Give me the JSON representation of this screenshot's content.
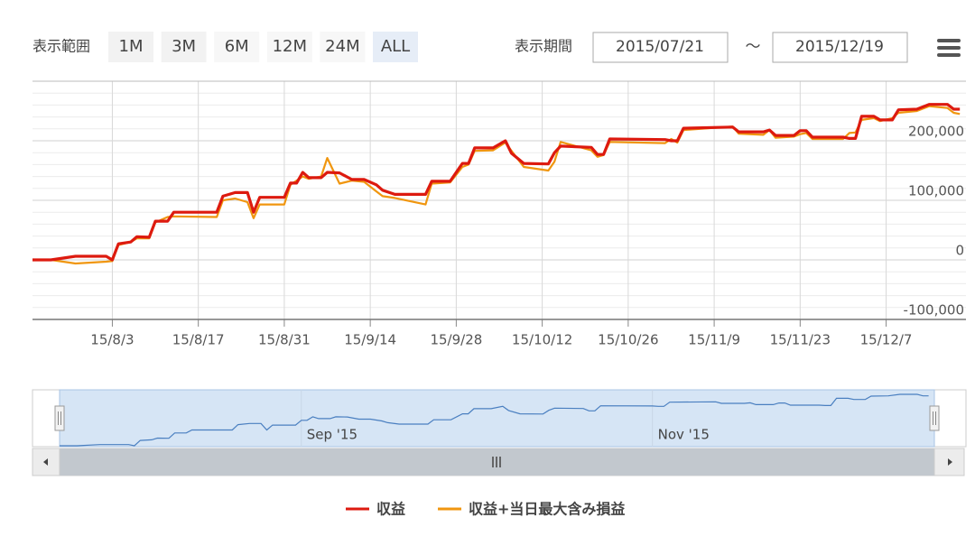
{
  "toolbar": {
    "range_label": "表示範囲",
    "buttons": [
      "1M",
      "3M",
      "6M",
      "12M",
      "24M",
      "ALL"
    ],
    "selected_index": 5,
    "disabled_indices": [
      2,
      3,
      4
    ],
    "period_label": "表示期間",
    "from": "2015/07/21",
    "separator": "～",
    "to": "2015/12/19"
  },
  "chart_data": {
    "type": "line",
    "x": [
      "2015-07-21",
      "2015-07-24",
      "2015-07-28",
      "2015-08-02",
      "2015-08-03",
      "2015-08-04",
      "2015-08-06",
      "2015-08-07",
      "2015-08-09",
      "2015-08-10",
      "2015-08-12",
      "2015-08-13",
      "2015-08-20",
      "2015-08-21",
      "2015-08-23",
      "2015-08-25",
      "2015-08-26",
      "2015-08-27",
      "2015-08-31",
      "2015-09-01",
      "2015-09-02",
      "2015-09-03",
      "2015-09-04",
      "2015-09-06",
      "2015-09-07",
      "2015-09-09",
      "2015-09-11",
      "2015-09-13",
      "2015-09-15",
      "2015-09-16",
      "2015-09-18",
      "2015-09-23",
      "2015-09-24",
      "2015-09-27",
      "2015-09-29",
      "2015-09-30",
      "2015-10-01",
      "2015-10-04",
      "2015-10-06",
      "2015-10-07",
      "2015-10-09",
      "2015-10-13",
      "2015-10-14",
      "2015-10-15",
      "2015-10-20",
      "2015-10-21",
      "2015-10-22",
      "2015-10-23",
      "2015-11-01",
      "2015-11-02",
      "2015-11-03",
      "2015-11-04",
      "2015-11-12",
      "2015-11-13",
      "2015-11-17",
      "2015-11-18",
      "2015-11-19",
      "2015-11-22",
      "2015-11-23",
      "2015-11-24",
      "2015-11-25",
      "2015-11-30",
      "2015-12-01",
      "2015-12-02",
      "2015-12-03",
      "2015-12-05",
      "2015-12-06",
      "2015-12-08",
      "2015-12-09",
      "2015-12-12",
      "2015-12-14",
      "2015-12-17",
      "2015-12-18",
      "2015-12-19"
    ],
    "series": [
      {
        "name": "収益",
        "color": "#dd1a0f",
        "values": [
          0,
          0,
          6000,
          6000,
          0,
          27000,
          30000,
          39000,
          38000,
          65000,
          65000,
          80000,
          80000,
          107000,
          113000,
          113000,
          80000,
          105000,
          105000,
          129000,
          129000,
          147000,
          138000,
          138000,
          147000,
          146000,
          135000,
          135000,
          126000,
          117000,
          110000,
          110000,
          132000,
          132000,
          162000,
          162000,
          188000,
          188000,
          200000,
          179000,
          162000,
          161000,
          180000,
          191000,
          189000,
          177000,
          177000,
          203000,
          202000,
          200000,
          200000,
          221000,
          223000,
          215000,
          215000,
          218000,
          209000,
          209000,
          217000,
          217000,
          206000,
          206000,
          204000,
          204000,
          241000,
          241000,
          235000,
          235000,
          252000,
          253000,
          261000,
          261000,
          253000,
          253000
        ]
      },
      {
        "name": "収益+当日最大含み損益",
        "color": "#f0960f",
        "values": [
          0,
          0,
          -6000,
          -3000,
          -2000,
          25000,
          30000,
          36000,
          36000,
          63000,
          72000,
          73000,
          72000,
          100000,
          103000,
          97000,
          70000,
          93000,
          93000,
          126000,
          133000,
          140000,
          136000,
          140000,
          171000,
          128000,
          133000,
          131000,
          115000,
          107000,
          104000,
          93000,
          128000,
          130000,
          156000,
          160000,
          183000,
          184000,
          197000,
          183000,
          156000,
          150000,
          165000,
          198000,
          184000,
          173000,
          176000,
          198000,
          196000,
          203000,
          197000,
          218000,
          224000,
          212000,
          210000,
          218000,
          205000,
          207000,
          211000,
          213000,
          203000,
          203000,
          213000,
          214000,
          235000,
          238000,
          233000,
          238000,
          247000,
          250000,
          258000,
          255000,
          247000,
          245000
        ]
      }
    ],
    "xlim": [
      "2015-07-21",
      "2015-12-20"
    ],
    "xticks": [
      {
        "value": "2015-08-03",
        "label": "15/8/3"
      },
      {
        "value": "2015-08-17",
        "label": "15/8/17"
      },
      {
        "value": "2015-08-31",
        "label": "15/8/31"
      },
      {
        "value": "2015-09-14",
        "label": "15/9/14"
      },
      {
        "value": "2015-09-28",
        "label": "15/9/28"
      },
      {
        "value": "2015-10-12",
        "label": "15/10/12"
      },
      {
        "value": "2015-10-26",
        "label": "15/10/26"
      },
      {
        "value": "2015-11-09",
        "label": "15/11/9"
      },
      {
        "value": "2015-11-23",
        "label": "15/11/23"
      },
      {
        "value": "2015-12-07",
        "label": "15/12/7"
      }
    ],
    "ylim": [
      -100000,
      300000
    ],
    "yticks": [
      {
        "value": -100000,
        "label": "-100,000"
      },
      0,
      {
        "value": 100000,
        "label": "100,000"
      },
      {
        "value": 200000,
        "label": "200,000"
      }
    ],
    "minor_grid_interval": 20000,
    "grid": true,
    "navigator_ticks": [
      {
        "value": "2015-09-01",
        "label": "Sep '15"
      },
      {
        "value": "2015-11-01",
        "label": "Nov '15"
      }
    ],
    "legend": "bottom"
  }
}
